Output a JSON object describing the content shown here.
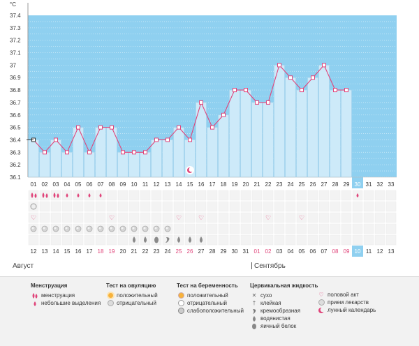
{
  "chart_data": {
    "type": "bar",
    "ylabel": "°C",
    "y_ticks": [
      "37.4",
      "37.3",
      "37.2",
      "37.1",
      "37",
      "36.9",
      "36.8",
      "36.7",
      "36.6",
      "36.5",
      "36.4",
      "36.3",
      "36.2",
      "36.1"
    ],
    "ylim": [
      36.1,
      37.4
    ],
    "cycle_days": [
      "01",
      "02",
      "03",
      "04",
      "05",
      "06",
      "07",
      "08",
      "09",
      "10",
      "11",
      "12",
      "13",
      "14",
      "15",
      "16",
      "17",
      "18",
      "19",
      "20",
      "21",
      "22",
      "23",
      "24",
      "25",
      "26",
      "27",
      "28",
      "29",
      "30",
      "31",
      "32",
      "33"
    ],
    "temperatures": [
      36.4,
      36.3,
      36.4,
      36.3,
      36.5,
      36.3,
      36.5,
      36.5,
      36.3,
      36.3,
      36.3,
      36.4,
      36.4,
      36.5,
      36.4,
      36.7,
      36.5,
      36.6,
      36.8,
      36.8,
      36.7,
      36.7,
      37.0,
      36.9,
      36.8,
      36.9,
      37.0,
      36.8,
      36.8
    ],
    "current_day_index": 29,
    "dates": [
      "12",
      "13",
      "14",
      "15",
      "16",
      "17",
      "18",
      "19",
      "20",
      "21",
      "22",
      "23",
      "24",
      "25",
      "26",
      "27",
      "28",
      "29",
      "30",
      "31",
      "01",
      "02",
      "03",
      "04",
      "05",
      "06",
      "07",
      "08",
      "09",
      "10",
      "11",
      "12",
      "13"
    ],
    "red_date_indices": [
      6,
      7,
      13,
      14,
      20,
      21,
      27,
      28
    ],
    "months": [
      "Август",
      "Сентябрь"
    ],
    "colors": {
      "sky": "#8fd0f0",
      "sky_top": "#6ccdea",
      "bar": "#cdeaf9",
      "bar_edge": "#a6d3ec",
      "line": "#e0447a",
      "accent": "#e0447a",
      "current": "#8fd0f0"
    },
    "rows": {
      "menstruation": {
        "heavy": [
          0,
          1,
          2
        ],
        "light": [
          3,
          4,
          5,
          6,
          29
        ]
      },
      "ovulation_test_negative": [
        0
      ],
      "intercourse": [
        0,
        7,
        13,
        15,
        21,
        24
      ],
      "medication": [
        0,
        1,
        2,
        3,
        4,
        5,
        6,
        7,
        8,
        9,
        10,
        11,
        12
      ],
      "cervical_fluid": {
        "watery": [
          9,
          10,
          13,
          14,
          15
        ],
        "egg_white": [
          11
        ],
        "creamy": [
          12
        ]
      }
    }
  },
  "legend": {
    "menstruation": {
      "title": "Менструация",
      "items": [
        "менструация",
        "небольшие выделения"
      ]
    },
    "ovulation": {
      "title": "Тест на овуляцию",
      "items": [
        "положительный",
        "отрицательный"
      ]
    },
    "pregnancy": {
      "title": "Тест на беременность",
      "items": [
        "положительный",
        "отрицательный",
        "слабоположительный"
      ]
    },
    "cervical": {
      "title": "Цервикальная жидкость",
      "items": [
        "сухо",
        "клейкая",
        "кремообразная",
        "водянистая",
        "яичный белок"
      ]
    },
    "other": {
      "items": [
        "половой акт",
        "прием лекарств",
        "лунный календарь"
      ]
    }
  }
}
